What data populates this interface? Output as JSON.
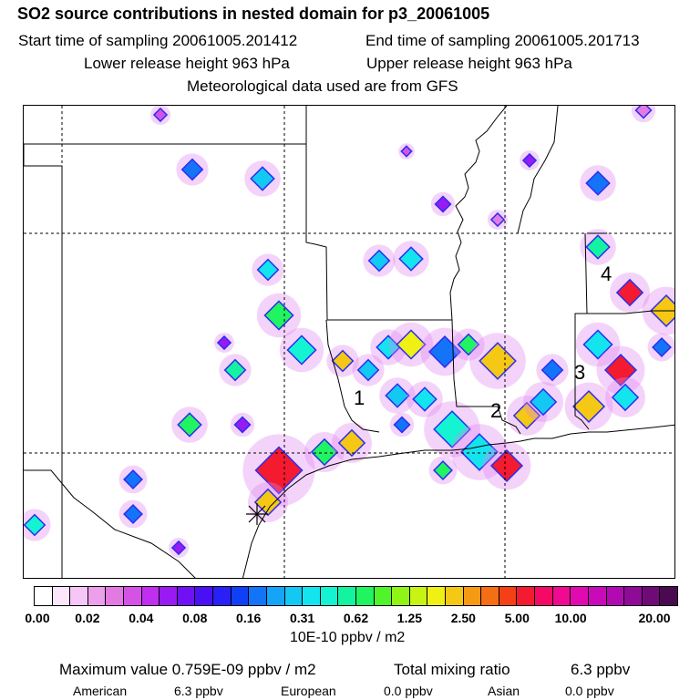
{
  "header": {
    "title": "SO2 source contributions in nested domain for p3_20061005",
    "start_time": "Start time of sampling 20061005.201412",
    "end_time": "End time of sampling 20061005.201713",
    "lower_height": "Lower release height  963 hPa",
    "upper_height": "Upper release height  963 hPa",
    "met_data": "Meteorological data used are from GFS"
  },
  "map": {
    "source_labels": [
      "1",
      "2",
      "3",
      "4"
    ],
    "marker_icon": "receptor-star-icon"
  },
  "colorbar": {
    "colors": [
      "#ffffff",
      "#fce6fc",
      "#f6c6f6",
      "#eca0ec",
      "#e27ae2",
      "#d652e6",
      "#c02ef0",
      "#9a1af4",
      "#7010f4",
      "#4a10f4",
      "#2820f6",
      "#1040f6",
      "#1474f8",
      "#14a4f8",
      "#14c8f4",
      "#14e4ee",
      "#14f4d2",
      "#14f4a0",
      "#20f460",
      "#50f428",
      "#90f414",
      "#c8f414",
      "#f0f014",
      "#f4c814",
      "#f49a14",
      "#f46e14",
      "#f44014",
      "#f41a30",
      "#f40a64",
      "#f00a92",
      "#e00ab0",
      "#c80ab8",
      "#b00ab0",
      "#900a98",
      "#700a78",
      "#4a0a50"
    ],
    "ticks": [
      "0.00",
      "0.02",
      "0.04",
      "0.08",
      "0.16",
      "0.31",
      "0.62",
      "1.25",
      "2.50",
      "5.00",
      "10.00",
      "20.00"
    ],
    "unit": "10E-10 ppbv / m2"
  },
  "footer": {
    "max_value": "Maximum value  0.759E-09 ppbv / m2",
    "total_label": "Total mixing ratio",
    "total_value": "6.3 ppbv",
    "american_label": "American",
    "american_value": "6.3 ppbv",
    "european_label": "European",
    "european_value": "0.0 ppbv",
    "asian_label": "Asian",
    "asian_value": "0.0 ppbv"
  }
}
